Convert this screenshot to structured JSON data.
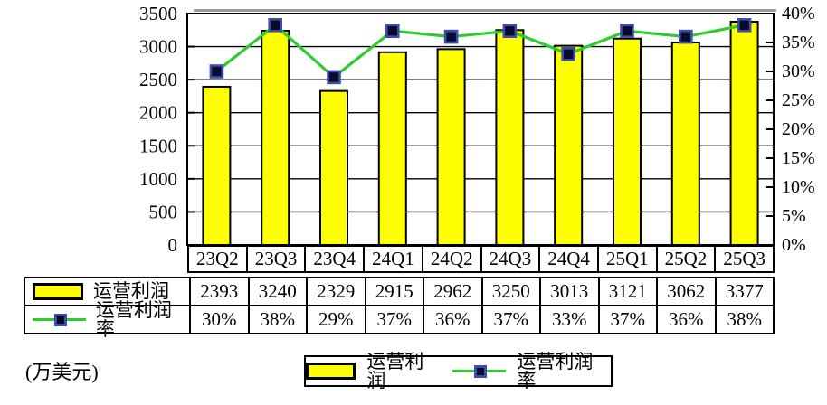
{
  "unit_label": "(万美元)",
  "colors": {
    "bar_fill": "#FFFF00",
    "bar_border": "#000000",
    "line": "#2FCC2F",
    "marker_fill": "#0A0A2E",
    "marker_border": "#3B4FA8",
    "grid": "#000000",
    "axis": "#000000",
    "shadow": "#9B9B9B"
  },
  "chart_data": {
    "type": "combo-bar-line",
    "categories": [
      "23Q2",
      "23Q3",
      "23Q4",
      "24Q1",
      "24Q2",
      "24Q3",
      "24Q4",
      "25Q1",
      "25Q2",
      "25Q3"
    ],
    "series": [
      {
        "name": "运营利润",
        "type": "bar",
        "axis": "left",
        "values": [
          2393,
          3240,
          2329,
          2915,
          2962,
          3250,
          3013,
          3121,
          3062,
          3377
        ]
      },
      {
        "name": "运营利润率",
        "type": "line",
        "axis": "right",
        "format": "percent",
        "values": [
          30,
          38,
          29,
          37,
          36,
          37,
          33,
          37,
          36,
          38
        ]
      }
    ],
    "left_axis": {
      "min": 0,
      "max": 3500,
      "step": 500,
      "tick_labels": [
        "3500",
        "3000",
        "2500",
        "2000",
        "1500",
        "1000",
        "500",
        "0"
      ]
    },
    "right_axis": {
      "min": 0,
      "max": 40,
      "step": 5,
      "tick_labels": [
        "40%",
        "35%",
        "30%",
        "25%",
        "20%",
        "15%",
        "10%",
        "5%",
        "0%"
      ]
    },
    "grid": "horizontal",
    "legend_position": "bottom"
  },
  "legend": {
    "items": [
      {
        "key": "bar",
        "label": "运营利润"
      },
      {
        "key": "line",
        "label": "运营利润率"
      }
    ]
  }
}
